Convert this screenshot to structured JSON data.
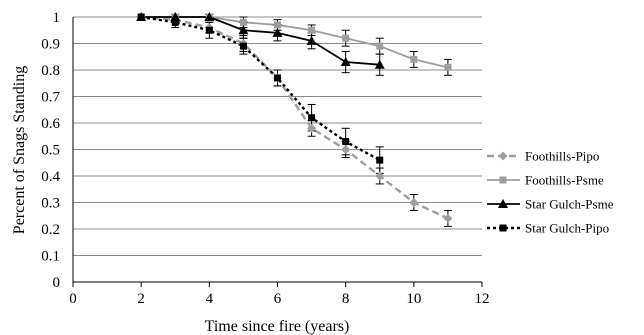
{
  "chart_data": {
    "type": "line",
    "xlabel": "Time since fire (years)",
    "ylabel": "Percent of Snags Standing",
    "xlim": [
      0,
      12
    ],
    "ylim": [
      0,
      1
    ],
    "x_ticks": [
      "0",
      "2",
      "4",
      "6",
      "8",
      "10",
      "12"
    ],
    "y_ticks": [
      "0",
      "0.1",
      "0.2",
      "0.3",
      "0.4",
      "0.5",
      "0.6",
      "0.7",
      "0.8",
      "0.9",
      "1"
    ],
    "grid": "horizontal",
    "legend_position": "right",
    "series": [
      {
        "name": "Foothills-Pipo",
        "color": "#9e9e9e",
        "style": "dashed",
        "marker": "diamond",
        "x": [
          2,
          3,
          4,
          5,
          6,
          7,
          8,
          9,
          10,
          11
        ],
        "y": [
          1.0,
          0.99,
          0.96,
          0.9,
          0.77,
          0.58,
          0.5,
          0.4,
          0.3,
          0.24
        ],
        "err": [
          0.0,
          0.01,
          0.02,
          0.03,
          0.03,
          0.03,
          0.03,
          0.03,
          0.03,
          0.03
        ]
      },
      {
        "name": "Foothills-Psme",
        "color": "#9e9e9e",
        "style": "solid",
        "marker": "square",
        "x": [
          2,
          3,
          4,
          5,
          6,
          7,
          8,
          9,
          10,
          11
        ],
        "y": [
          1.0,
          1.0,
          1.0,
          0.98,
          0.97,
          0.95,
          0.92,
          0.89,
          0.84,
          0.81
        ],
        "err": [
          0.0,
          0.0,
          0.01,
          0.02,
          0.02,
          0.02,
          0.03,
          0.03,
          0.03,
          0.03
        ]
      },
      {
        "name": "Star Gulch-Psme",
        "color": "#000000",
        "style": "solid",
        "marker": "triangle",
        "x": [
          2,
          3,
          4,
          5,
          6,
          7,
          8,
          9
        ],
        "y": [
          1.0,
          1.0,
          1.0,
          0.95,
          0.94,
          0.91,
          0.83,
          0.82
        ],
        "err": [
          0.0,
          0.01,
          0.01,
          0.03,
          0.03,
          0.03,
          0.04,
          0.04
        ]
      },
      {
        "name": "Star Gulch-Pipo",
        "color": "#000000",
        "style": "dotted",
        "marker": "square",
        "x": [
          2,
          3,
          4,
          5,
          6,
          7,
          8,
          9
        ],
        "y": [
          1.0,
          0.98,
          0.95,
          0.89,
          0.77,
          0.62,
          0.53,
          0.46
        ],
        "err": [
          0.0,
          0.02,
          0.03,
          0.03,
          0.03,
          0.05,
          0.05,
          0.05
        ]
      }
    ]
  }
}
